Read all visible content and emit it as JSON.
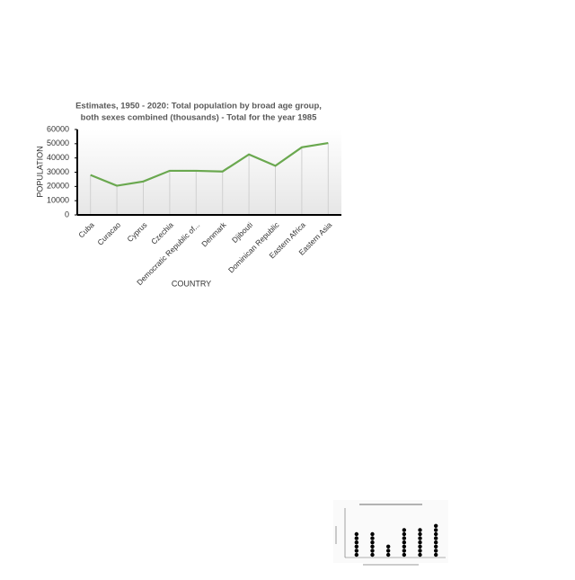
{
  "chart_data": [
    {
      "type": "line",
      "title": [
        "Estimates, 1950 - 2020: Total population by broad age group,",
        "both sexes combined (thousands) - Total for the year 1985"
      ],
      "x_label": "COUNTRY",
      "y_label": "POPULATION",
      "categories": [
        "Cuba",
        "Curacao",
        "Cyprus",
        "Czechia",
        "Democratic Republic of...",
        "Denmark",
        "Djibouti",
        "Dominican Republic",
        "Eastern Africa",
        "Eastern Asia"
      ],
      "values": [
        28000,
        20500,
        23500,
        31000,
        31000,
        30500,
        42500,
        34500,
        47500,
        50500
      ],
      "color": "#6aa84f",
      "ylim": [
        0,
        60000
      ],
      "yticks": [
        0,
        10000,
        20000,
        30000,
        40000,
        50000,
        60000
      ]
    },
    {
      "type": "dot",
      "values": [
        6,
        6,
        3,
        7,
        7,
        8
      ],
      "color": "#000000"
    }
  ]
}
